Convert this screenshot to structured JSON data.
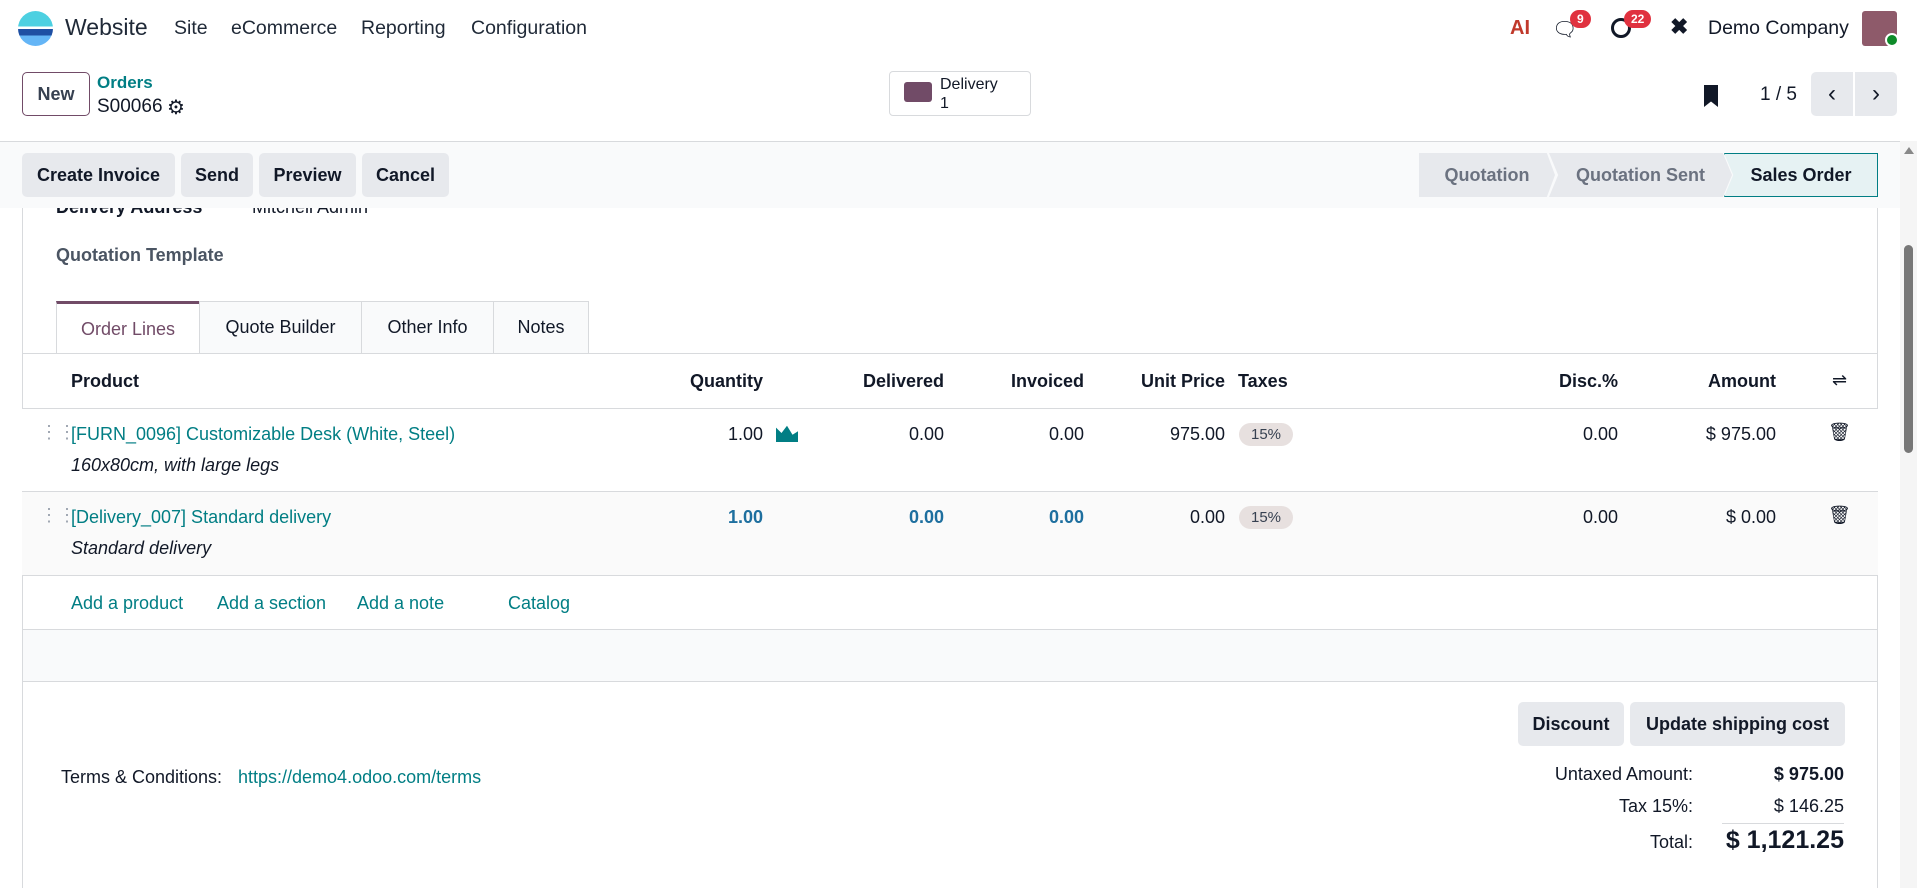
{
  "navbar": {
    "app_name": "Website",
    "menu": [
      "Site",
      "eCommerce",
      "Reporting",
      "Configuration"
    ],
    "ai_label": "AI",
    "messages_count": "9",
    "activities_count": "22",
    "company": "Demo Company"
  },
  "control": {
    "new_label": "New",
    "breadcrumb": "Orders",
    "record": "S00066",
    "smart_button": {
      "label": "Delivery",
      "count": "1"
    },
    "pager": "1 / 5"
  },
  "actions": [
    "Create Invoice",
    "Send",
    "Preview",
    "Cancel"
  ],
  "status": {
    "stages": [
      "Quotation",
      "Quotation Sent",
      "Sales Order"
    ],
    "active": "Sales Order"
  },
  "form": {
    "delivery_address_label": "Delivery Address",
    "delivery_address_value": "Mitchell Admin",
    "quotation_template_label": "Quotation Template"
  },
  "tabs": [
    "Order Lines",
    "Quote Builder",
    "Other Info",
    "Notes"
  ],
  "table": {
    "headers": {
      "product": "Product",
      "quantity": "Quantity",
      "delivered": "Delivered",
      "invoiced": "Invoiced",
      "unit_price": "Unit Price",
      "taxes": "Taxes",
      "disc": "Disc.%",
      "amount": "Amount"
    },
    "rows": [
      {
        "product": "[FURN_0096] Customizable Desk (White, Steel)",
        "description": "160x80cm, with large legs",
        "quantity": "1.00",
        "delivered": "0.00",
        "invoiced": "0.00",
        "unit_price": "975.00",
        "tax": "15%",
        "disc": "0.00",
        "amount": "$ 975.00"
      },
      {
        "product": "[Delivery_007] Standard delivery",
        "description": "Standard delivery",
        "quantity": "1.00",
        "delivered": "0.00",
        "invoiced": "0.00",
        "unit_price": "0.00",
        "tax": "15%",
        "disc": "0.00",
        "amount": "$ 0.00"
      }
    ],
    "add_links": [
      "Add a product",
      "Add a section",
      "Add a note",
      "Catalog"
    ]
  },
  "footer": {
    "discount_label": "Discount",
    "shipping_label": "Update shipping cost",
    "terms_label": "Terms & Conditions:",
    "terms_link": "https://demo4.odoo.com/terms",
    "untaxed_label": "Untaxed Amount:",
    "untaxed_value": "$ 975.00",
    "tax_label": "Tax 15%:",
    "tax_value": "$ 146.25",
    "total_label": "Total:",
    "total_value": "$ 1,121.25"
  },
  "colors": {
    "accent": "#017e84",
    "brand": "#714b67",
    "badge": "#e7e0df",
    "notif": "#e0313f"
  }
}
